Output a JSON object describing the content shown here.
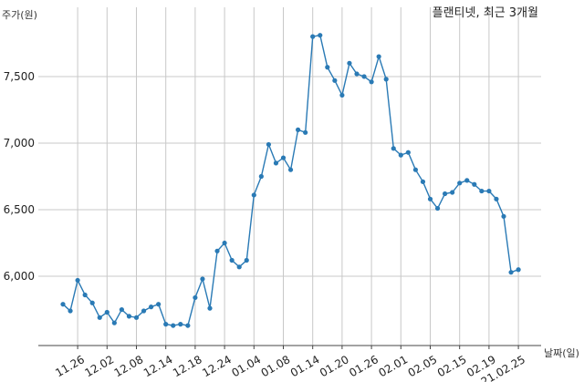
{
  "chart_data": {
    "type": "line",
    "title": "플랜티넷, 최근 3개월",
    "xlabel": "날짜(일)",
    "ylabel": "주가(원)",
    "ylim": [
      5480,
      8020
    ],
    "yticks": [
      6000,
      6500,
      7000,
      7500
    ],
    "ytick_labels": [
      "6,000",
      "6,500",
      "7,000",
      "7,500"
    ],
    "grid": true,
    "color": "#2a7ab5",
    "xtick_labels": [
      "11.26",
      "12.02",
      "12.08",
      "12.14",
      "12.18",
      "12.24",
      "01.04",
      "01.08",
      "01.14",
      "01.20",
      "01.26",
      "02.01",
      "02.05",
      "02.15",
      "02.19",
      "21.02.25"
    ],
    "xtick_indices": [
      2,
      6,
      10,
      14,
      18,
      22,
      26,
      30,
      34,
      38,
      42,
      46,
      50,
      54,
      58,
      62
    ],
    "values": [
      5790,
      5740,
      5970,
      5860,
      5800,
      5690,
      5730,
      5650,
      5750,
      5700,
      5690,
      5740,
      5770,
      5790,
      5640,
      5630,
      5640,
      5630,
      5840,
      5980,
      5760,
      6190,
      6250,
      6120,
      6070,
      6120,
      6610,
      6750,
      6990,
      6850,
      6890,
      6800,
      7100,
      7080,
      7800,
      7810,
      7570,
      7470,
      7360,
      7600,
      7520,
      7500,
      7460,
      7650,
      7480,
      6960,
      6910,
      6930,
      6800,
      6710,
      6580,
      6510,
      6620,
      6630,
      6700,
      6720,
      6690,
      6640,
      6640,
      6580,
      6450,
      6030,
      6050
    ]
  }
}
